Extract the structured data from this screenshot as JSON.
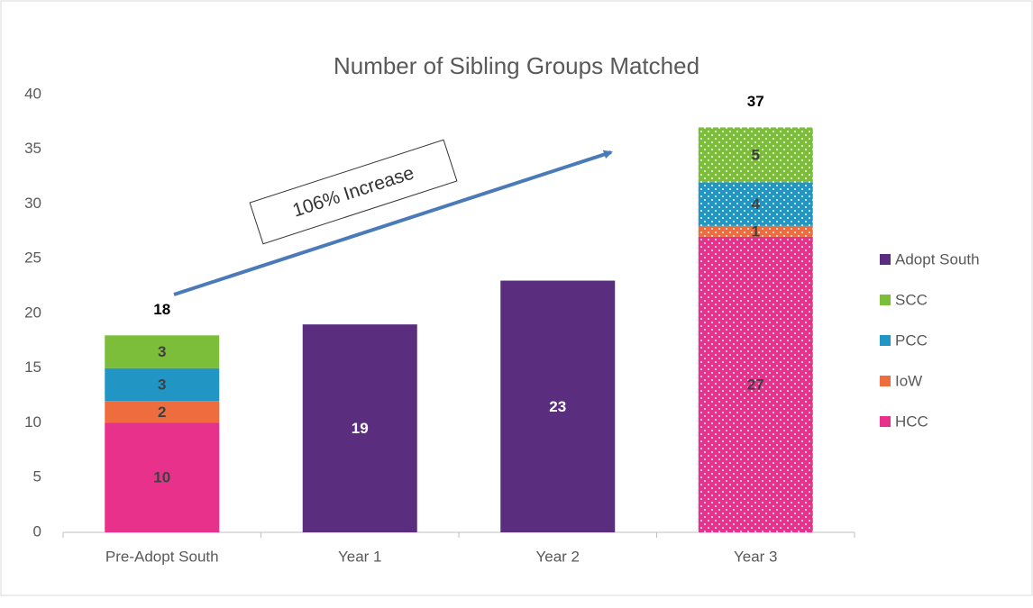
{
  "chart_data": {
    "type": "stacked_bar",
    "title": "Number of Sibling Groups Matched",
    "categories": [
      "Pre-Adopt South",
      "Year 1",
      "Year 2",
      "Year 3"
    ],
    "series": [
      {
        "name": "HCC",
        "color": "#e8318a",
        "values": [
          10,
          null,
          null,
          27
        ]
      },
      {
        "name": "IoW",
        "color": "#ef6c3f",
        "values": [
          2,
          null,
          null,
          1
        ]
      },
      {
        "name": "PCC",
        "color": "#2196c4",
        "values": [
          3,
          null,
          null,
          4
        ]
      },
      {
        "name": "SCC",
        "color": "#7cbd3a",
        "values": [
          3,
          null,
          null,
          5
        ]
      },
      {
        "name": "Adopt South",
        "color": "#5b2d7e",
        "values": [
          null,
          19,
          23,
          null
        ]
      }
    ],
    "totals": [
      18,
      null,
      null,
      37
    ],
    "patterned": [
      false,
      false,
      false,
      true
    ],
    "ylim": [
      0,
      40
    ],
    "yticks": [
      0,
      5,
      10,
      15,
      20,
      25,
      30,
      35,
      40
    ],
    "grid": false,
    "legend": "right",
    "annotation": "106% Increase"
  }
}
